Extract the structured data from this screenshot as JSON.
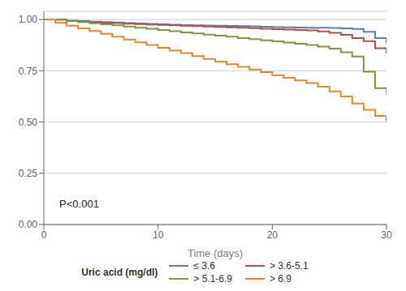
{
  "chart_data": {
    "type": "line",
    "line_style": "step",
    "xlabel": "Time (days)",
    "legend_title": "Uric acid (mg/dl)",
    "legend": "bottom",
    "grid": "y",
    "xlim": [
      0,
      30
    ],
    "ylim": [
      0.0,
      1.04
    ],
    "xticks": [
      0,
      10,
      20,
      30
    ],
    "yticks": [
      {
        "value": 0.0,
        "label": "0.00"
      },
      0.25,
      {
        "value": 0.5,
        "label": "0.50"
      },
      0.75,
      {
        "value": 1.0,
        "label": "1.00"
      }
    ],
    "annotations": [
      {
        "text": "P<0.001",
        "x": 1.0,
        "y": 0.1
      }
    ],
    "x": [
      0,
      1,
      2,
      3,
      4,
      5,
      6,
      7,
      8,
      9,
      10,
      11,
      12,
      13,
      14,
      15,
      16,
      17,
      18,
      19,
      20,
      21,
      22,
      23,
      24,
      25,
      26,
      27,
      28,
      29,
      30
    ],
    "series": [
      {
        "name": "≤ 3.6",
        "color": "#5b7db1",
        "values": [
          1.0,
          1.0,
          0.995,
          0.993,
          0.99,
          0.988,
          0.986,
          0.983,
          0.981,
          0.979,
          0.977,
          0.975,
          0.973,
          0.972,
          0.971,
          0.97,
          0.969,
          0.968,
          0.967,
          0.965,
          0.963,
          0.962,
          0.961,
          0.96,
          0.96,
          0.959,
          0.957,
          0.954,
          0.94,
          0.91,
          0.885
        ]
      },
      {
        "name": "> 3.6-5.1",
        "color": "#b05050",
        "values": [
          1.0,
          1.0,
          0.993,
          0.99,
          0.988,
          0.985,
          0.983,
          0.98,
          0.978,
          0.976,
          0.974,
          0.972,
          0.97,
          0.968,
          0.966,
          0.964,
          0.962,
          0.96,
          0.958,
          0.955,
          0.953,
          0.951,
          0.949,
          0.947,
          0.942,
          0.935,
          0.925,
          0.91,
          0.895,
          0.86,
          0.835
        ]
      },
      {
        "name": "> 5.1-6.9",
        "color": "#7a9a40",
        "values": [
          1.0,
          0.998,
          0.993,
          0.988,
          0.982,
          0.977,
          0.972,
          0.966,
          0.96,
          0.955,
          0.949,
          0.943,
          0.937,
          0.932,
          0.926,
          0.921,
          0.916,
          0.91,
          0.905,
          0.899,
          0.894,
          0.888,
          0.882,
          0.876,
          0.868,
          0.858,
          0.84,
          0.82,
          0.745,
          0.665,
          0.635
        ]
      },
      {
        "name": "> 6.9",
        "color": "#e8882a",
        "values": [
          1.0,
          0.985,
          0.97,
          0.957,
          0.944,
          0.93,
          0.916,
          0.903,
          0.889,
          0.876,
          0.862,
          0.849,
          0.836,
          0.822,
          0.808,
          0.795,
          0.782,
          0.769,
          0.756,
          0.743,
          0.729,
          0.716,
          0.703,
          0.69,
          0.672,
          0.65,
          0.625,
          0.59,
          0.56,
          0.53,
          0.5
        ]
      }
    ]
  }
}
